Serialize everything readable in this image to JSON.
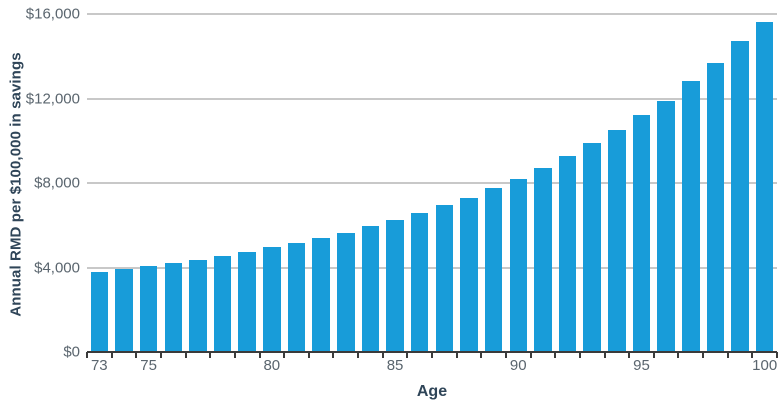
{
  "colors": {
    "bar": "#189cd9",
    "gridline": "#c8c8c8",
    "axis_line": "#3b3b3b",
    "tick_label": "#5a656e",
    "axis_title": "#2f4558",
    "background": "#ffffff"
  },
  "chart_data": {
    "type": "bar",
    "title": "",
    "xlabel": "Age",
    "ylabel": "Annual RMD per $100,000 in savings",
    "categories": [
      73,
      74,
      75,
      76,
      77,
      78,
      79,
      80,
      81,
      82,
      83,
      84,
      85,
      86,
      87,
      88,
      89,
      90,
      91,
      92,
      93,
      94,
      95,
      96,
      97,
      98,
      99,
      100
    ],
    "values": [
      3774,
      3922,
      4065,
      4219,
      4367,
      4545,
      4739,
      4950,
      5155,
      5405,
      5650,
      5952,
      6250,
      6579,
      6944,
      7299,
      7752,
      8197,
      8696,
      9259,
      9901,
      10526,
      11236,
      11905,
      12821,
      13699,
      14706,
      15625
    ],
    "ylim": [
      0,
      16000
    ],
    "grid": "horizontal",
    "legend": "none",
    "yticks": [
      {
        "value": 0,
        "label": "$0"
      },
      {
        "value": 4000,
        "label": "$4,000"
      },
      {
        "value": 8000,
        "label": "$8,000"
      },
      {
        "value": 12000,
        "label": "$12,000"
      },
      {
        "value": 16000,
        "label": "$16,000"
      }
    ],
    "xticks": [
      {
        "age": 73,
        "label": "73"
      },
      {
        "age": 75,
        "label": "75"
      },
      {
        "age": 80,
        "label": "80"
      },
      {
        "age": 85,
        "label": "85"
      },
      {
        "age": 90,
        "label": "90"
      },
      {
        "age": 95,
        "label": "95"
      },
      {
        "age": 100,
        "label": "100"
      }
    ]
  }
}
